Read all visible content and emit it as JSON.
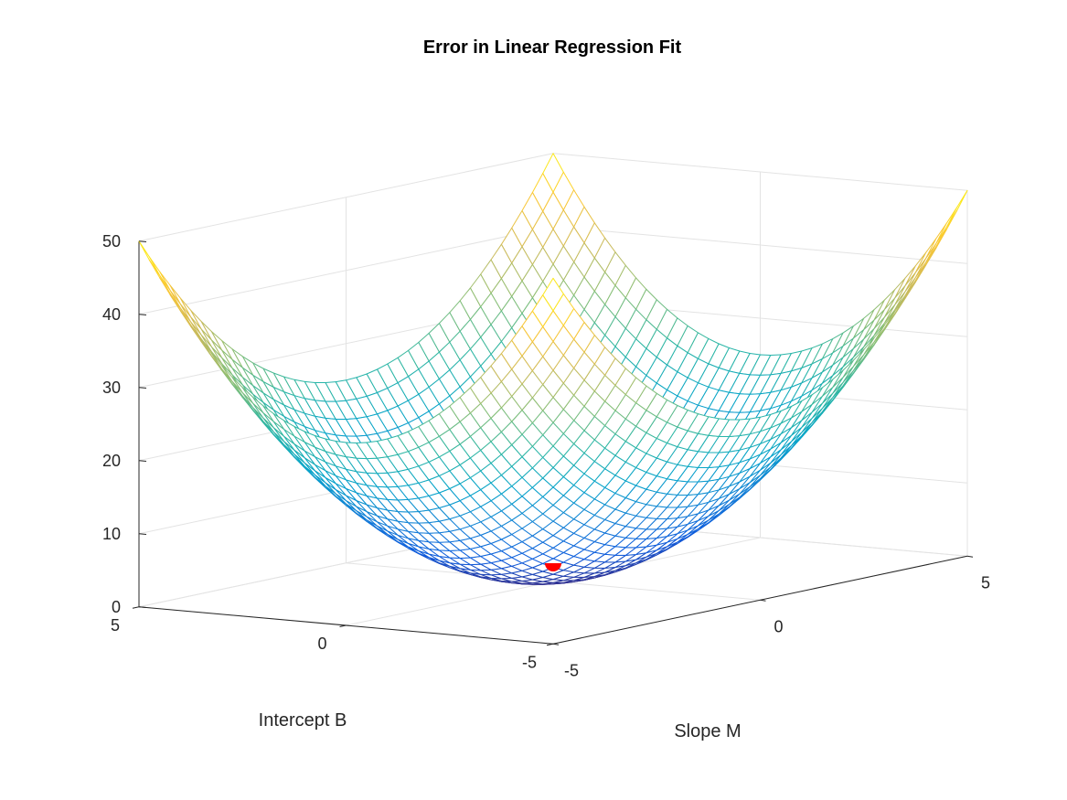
{
  "chart_data": {
    "type": "surface",
    "title": "Error in Linear Regression Fit",
    "xlabel": "Slope M",
    "ylabel": "Intercept B",
    "zlabel": "",
    "x_range": [
      -5,
      5
    ],
    "y_range": [
      -5,
      5
    ],
    "z_range": [
      0,
      50
    ],
    "x_ticks": [
      -5,
      0,
      5
    ],
    "y_ticks": [
      -5,
      0,
      5
    ],
    "z_ticks": [
      0,
      10,
      20,
      30,
      40,
      50
    ],
    "x_tick_labels": [
      "-5",
      "0",
      "5"
    ],
    "y_tick_labels": [
      "-5",
      "0",
      "5"
    ],
    "z_tick_labels": [
      "0",
      "10",
      "20",
      "30",
      "40",
      "50"
    ],
    "grid": true,
    "surface": {
      "function": "z = x^2 + y^2",
      "mesh_steps": 40,
      "colormap": "parula",
      "colors": [
        "#352a87",
        "#0f5cdd",
        "#1481d6",
        "#06a4ca",
        "#2eb7a4",
        "#87bf77",
        "#d1bb59",
        "#fec832",
        "#f9fb0e"
      ]
    },
    "marker": {
      "x": 0,
      "y": 0,
      "z": 2.5,
      "color": "#ff0000",
      "shape": "half-disc"
    }
  }
}
